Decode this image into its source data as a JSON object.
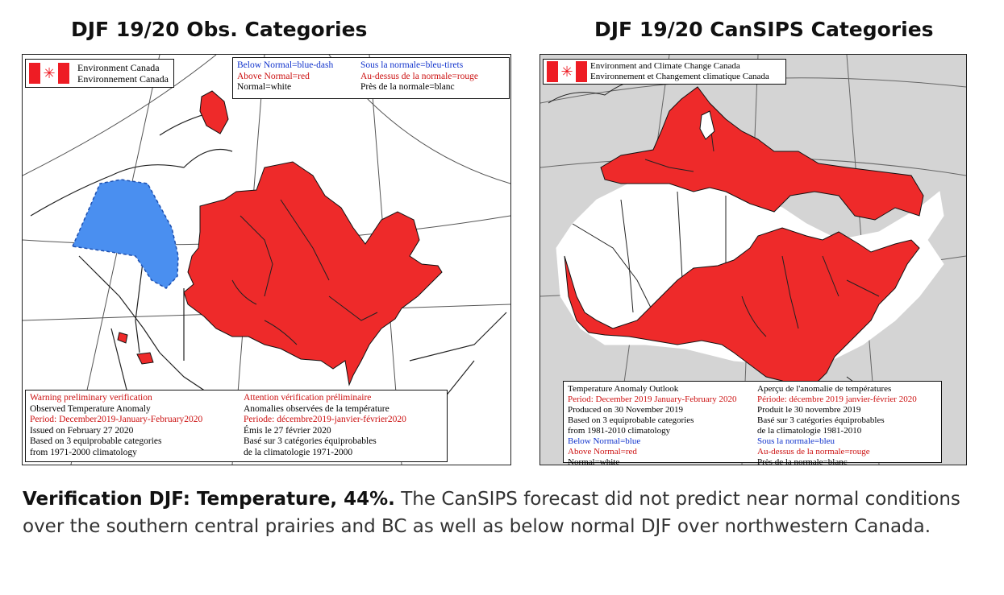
{
  "left_panel": {
    "title": "DJF 19/20 Obs. Categories",
    "agency": [
      "Environment Canada",
      "Environnement Canada"
    ],
    "legend": {
      "below_en": "Below Normal=blue-dash",
      "above_en": "Above Normal=red",
      "normal_en": "Normal=white",
      "below_fr": "Sous la normale=bleu-tirets",
      "above_fr": "Au-dessus de la normale=rouge",
      "normal_fr": "Près de la normale=blanc"
    },
    "info_en": [
      "Warning preliminary verification",
      "Observed Temperature Anomaly",
      "Period: December2019-January-February2020",
      "Issued on February 27 2020",
      "Based on 3 equiprobable categories",
      "from 1971-2000 climatology"
    ],
    "info_fr": [
      "Attention vérification préliminaire",
      "Anomalies observées de la température",
      "Periode: décembre2019-janvier-février2020",
      "Émis le 27 février 2020",
      "Basé sur 3 catégories équiprobables",
      "de la climatologie 1971-2000"
    ]
  },
  "right_panel": {
    "title": "DJF 19/20 CanSIPS Categories",
    "agency": [
      "Environment and Climate Change Canada",
      "Environnement et Changement climatique Canada"
    ],
    "info_en": [
      "Temperature Anomaly Outlook",
      "Period: December 2019 January-February 2020",
      "Produced on 30 November 2019",
      "Based on 3 equiprobable categories",
      "from 1981-2010 climatology",
      "Below Normal=blue",
      "Above Normal=red",
      "Normal=white"
    ],
    "info_fr": [
      "Aperçu de l'anomalie de températures",
      "Période: décembre 2019 janvier-février 2020",
      "Produit le 30 novembre 2019",
      "Basé sur 3 catégories équiprobables",
      "de la climatologie 1981-2010",
      "Sous la normale=bleu",
      "Au-dessus de la normale=rouge",
      "Près de la normale=blanc"
    ]
  },
  "caption": {
    "bold": "Verification DJF: Temperature, 44%.",
    "text": " The CanSIPS forecast did not predict near normal conditions over the southern central prairies and BC as well as below normal DJF over northwestern Canada."
  },
  "colors": {
    "above": "#ee2a2a",
    "below": "#4a8ff0",
    "normal": "#ffffff",
    "outside": "#d4d4d4"
  },
  "icons": {
    "flag": "maple-leaf-icon"
  }
}
